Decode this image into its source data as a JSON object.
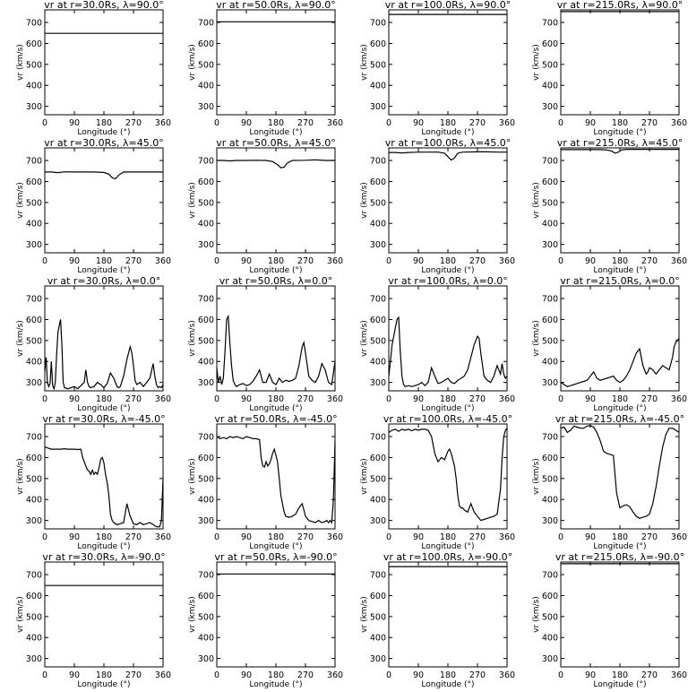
{
  "figure": {
    "xlabel": "Longitude (°)",
    "ylabel": "vr (km/s)",
    "xlim": [
      0,
      360
    ],
    "ylim": [
      260,
      760
    ],
    "xticks": [
      0,
      90,
      180,
      270,
      360
    ],
    "yticks": [
      300,
      400,
      500,
      600,
      700
    ],
    "line_color": "#000000"
  },
  "chart_data": [
    {
      "type": "line",
      "title": "vr at r=30.0Rs, λ=90.0°",
      "x": [
        0,
        360
      ],
      "y": [
        648,
        648
      ]
    },
    {
      "type": "line",
      "title": "vr at r=50.0Rs, λ=90.0°",
      "x": [
        0,
        360
      ],
      "y": [
        703,
        703
      ]
    },
    {
      "type": "line",
      "title": "vr at r=100.0Rs, λ=90.0°",
      "x": [
        0,
        360
      ],
      "y": [
        738,
        738
      ]
    },
    {
      "type": "line",
      "title": "vr at r=215.0Rs, λ=90.0°",
      "x": [
        0,
        360
      ],
      "y": [
        752,
        752
      ]
    },
    {
      "type": "line",
      "title": "vr at r=30.0Rs, λ=45.0°",
      "x": [
        0,
        20,
        40,
        60,
        90,
        120,
        150,
        180,
        195,
        205,
        215,
        225,
        240,
        270,
        300,
        330,
        360
      ],
      "y": [
        645,
        645,
        642,
        646,
        645,
        645,
        645,
        643,
        635,
        618,
        612,
        630,
        645,
        645,
        645,
        645,
        645
      ]
    },
    {
      "type": "line",
      "title": "vr at r=50.0Rs, λ=45.0°",
      "x": [
        0,
        20,
        40,
        60,
        90,
        120,
        150,
        170,
        185,
        195,
        205,
        215,
        230,
        270,
        300,
        330,
        360
      ],
      "y": [
        700,
        700,
        698,
        700,
        700,
        701,
        700,
        695,
        680,
        665,
        668,
        688,
        700,
        701,
        703,
        700,
        700
      ]
    },
    {
      "type": "line",
      "title": "vr at r=100.0Rs, λ=45.0°",
      "x": [
        0,
        20,
        40,
        60,
        90,
        120,
        150,
        170,
        180,
        190,
        200,
        210,
        225,
        270,
        300,
        330,
        360
      ],
      "y": [
        738,
        738,
        736,
        738,
        740,
        740,
        740,
        735,
        718,
        702,
        712,
        735,
        740,
        741,
        741,
        740,
        740
      ]
    },
    {
      "type": "line",
      "title": "vr at r=215.0Rs, λ=45.0°",
      "x": [
        0,
        30,
        60,
        90,
        120,
        140,
        155,
        165,
        175,
        185,
        200,
        240,
        270,
        300,
        330,
        360
      ],
      "y": [
        752,
        752,
        752,
        752,
        752,
        750,
        745,
        735,
        740,
        750,
        753,
        753,
        753,
        753,
        753,
        753
      ]
    },
    {
      "type": "line",
      "title": "vr at r=30.0Rs, λ=0.0°",
      "x": [
        0,
        4,
        8,
        12,
        16,
        20,
        24,
        28,
        32,
        36,
        40,
        44,
        48,
        52,
        56,
        60,
        70,
        80,
        90,
        100,
        110,
        120,
        125,
        130,
        135,
        140,
        150,
        160,
        170,
        180,
        190,
        200,
        210,
        215,
        220,
        225,
        230,
        240,
        250,
        260,
        265,
        270,
        275,
        280,
        290,
        300,
        310,
        320,
        330,
        335,
        340,
        345,
        350,
        355,
        360
      ],
      "y": [
        355,
        420,
        300,
        280,
        295,
        400,
        285,
        270,
        300,
        430,
        540,
        570,
        600,
        480,
        300,
        275,
        270,
        275,
        280,
        270,
        285,
        300,
        360,
        300,
        280,
        275,
        280,
        300,
        290,
        275,
        295,
        345,
        320,
        300,
        280,
        275,
        280,
        330,
        410,
        470,
        440,
        380,
        310,
        290,
        300,
        280,
        300,
        320,
        390,
        330,
        290,
        275,
        280,
        275,
        290
      ]
    },
    {
      "type": "line",
      "title": "vr at r=50.0Rs, λ=0.0°",
      "x": [
        0,
        5,
        10,
        15,
        20,
        25,
        30,
        35,
        40,
        45,
        50,
        55,
        60,
        70,
        80,
        90,
        100,
        110,
        120,
        130,
        140,
        150,
        160,
        170,
        180,
        190,
        200,
        210,
        220,
        230,
        240,
        250,
        260,
        265,
        270,
        280,
        290,
        300,
        310,
        320,
        330,
        340,
        350,
        360
      ],
      "y": [
        370,
        300,
        330,
        290,
        320,
        450,
        600,
        615,
        480,
        380,
        310,
        290,
        280,
        290,
        295,
        285,
        290,
        305,
        330,
        360,
        300,
        300,
        340,
        300,
        290,
        320,
        300,
        310,
        305,
        310,
        320,
        380,
        470,
        490,
        440,
        330,
        310,
        300,
        330,
        390,
        360,
        300,
        290,
        400
      ]
    },
    {
      "type": "line",
      "title": "vr at r=100.0Rs, λ=0.0°",
      "x": [
        0,
        5,
        10,
        15,
        20,
        25,
        30,
        35,
        40,
        45,
        50,
        60,
        70,
        80,
        90,
        100,
        110,
        120,
        130,
        140,
        150,
        160,
        170,
        180,
        190,
        200,
        210,
        220,
        230,
        240,
        250,
        260,
        270,
        275,
        280,
        290,
        300,
        310,
        320,
        330,
        340,
        345,
        350,
        355,
        360
      ],
      "y": [
        330,
        400,
        480,
        520,
        560,
        600,
        610,
        450,
        330,
        290,
        280,
        285,
        280,
        285,
        290,
        300,
        285,
        300,
        370,
        330,
        295,
        300,
        310,
        320,
        300,
        295,
        310,
        320,
        330,
        360,
        420,
        480,
        520,
        510,
        440,
        330,
        310,
        300,
        330,
        380,
        340,
        390,
        340,
        320,
        330
      ]
    },
    {
      "type": "line",
      "title": "vr at r=215.0Rs, λ=0.0°",
      "x": [
        0,
        10,
        20,
        30,
        40,
        50,
        60,
        70,
        80,
        90,
        100,
        110,
        120,
        130,
        140,
        150,
        160,
        170,
        180,
        190,
        200,
        210,
        220,
        230,
        240,
        250,
        260,
        265,
        270,
        280,
        290,
        300,
        310,
        320,
        330,
        340,
        345,
        350,
        355,
        360
      ],
      "y": [
        300,
        290,
        280,
        285,
        290,
        295,
        300,
        305,
        310,
        330,
        350,
        320,
        310,
        315,
        320,
        325,
        330,
        310,
        300,
        310,
        330,
        360,
        400,
        440,
        460,
        380,
        340,
        350,
        370,
        360,
        340,
        360,
        380,
        370,
        360,
        420,
        470,
        490,
        500,
        510
      ]
    },
    {
      "type": "line",
      "title": "vr at r=30.0Rs, λ=-45.0°",
      "x": [
        0,
        10,
        20,
        30,
        40,
        50,
        60,
        70,
        80,
        90,
        100,
        110,
        115,
        120,
        125,
        130,
        135,
        140,
        145,
        150,
        155,
        160,
        165,
        170,
        175,
        180,
        185,
        190,
        195,
        200,
        205,
        210,
        220,
        230,
        240,
        250,
        260,
        270,
        280,
        290,
        300,
        310,
        320,
        330,
        340,
        350,
        355,
        360
      ],
      "y": [
        650,
        645,
        640,
        640,
        640,
        640,
        642,
        640,
        640,
        640,
        638,
        640,
        600,
        580,
        560,
        540,
        535,
        520,
        540,
        520,
        530,
        520,
        550,
        590,
        600,
        575,
        520,
        480,
        420,
        330,
        300,
        290,
        280,
        285,
        290,
        380,
        320,
        285,
        280,
        290,
        280,
        285,
        290,
        280,
        270,
        270,
        300,
        500
      ]
    },
    {
      "type": "line",
      "title": "vr at r=50.0Rs, λ=-45.0°",
      "x": [
        0,
        10,
        20,
        30,
        40,
        50,
        60,
        70,
        80,
        90,
        100,
        110,
        120,
        130,
        135,
        140,
        145,
        150,
        155,
        160,
        165,
        170,
        175,
        180,
        185,
        190,
        195,
        200,
        205,
        210,
        220,
        230,
        240,
        250,
        260,
        265,
        270,
        280,
        290,
        300,
        310,
        320,
        330,
        335,
        340,
        345,
        350,
        355,
        360
      ],
      "y": [
        700,
        690,
        695,
        690,
        700,
        695,
        700,
        695,
        690,
        700,
        695,
        690,
        690,
        685,
        600,
        560,
        555,
        580,
        560,
        570,
        590,
        620,
        640,
        610,
        580,
        500,
        420,
        380,
        340,
        320,
        315,
        320,
        330,
        360,
        380,
        350,
        320,
        300,
        295,
        290,
        300,
        290,
        295,
        300,
        290,
        300,
        290,
        400,
        680
      ]
    },
    {
      "type": "line",
      "title": "vr at r=100.0Rs, λ=-45.0°",
      "x": [
        0,
        10,
        20,
        30,
        40,
        50,
        60,
        70,
        80,
        90,
        100,
        110,
        120,
        130,
        140,
        150,
        160,
        170,
        180,
        185,
        190,
        200,
        205,
        210,
        215,
        220,
        225,
        230,
        240,
        250,
        260,
        270,
        280,
        290,
        300,
        310,
        320,
        330,
        340,
        345,
        350,
        355,
        360
      ],
      "y": [
        720,
        730,
        735,
        725,
        735,
        730,
        735,
        728,
        735,
        730,
        735,
        735,
        730,
        700,
        620,
        580,
        600,
        590,
        630,
        640,
        620,
        560,
        500,
        420,
        370,
        360,
        360,
        350,
        340,
        380,
        340,
        320,
        300,
        305,
        310,
        315,
        320,
        330,
        450,
        600,
        700,
        730,
        740
      ]
    },
    {
      "type": "line",
      "title": "vr at r=215.0Rs, λ=-45.0°",
      "x": [
        0,
        10,
        20,
        30,
        40,
        50,
        60,
        70,
        80,
        90,
        100,
        110,
        120,
        130,
        140,
        150,
        160,
        165,
        170,
        180,
        190,
        200,
        210,
        220,
        230,
        240,
        250,
        260,
        270,
        280,
        290,
        300,
        310,
        320,
        330,
        340,
        350,
        360
      ],
      "y": [
        740,
        745,
        720,
        730,
        750,
        745,
        740,
        740,
        750,
        752,
        745,
        720,
        680,
        630,
        620,
        615,
        610,
        520,
        430,
        360,
        370,
        375,
        365,
        340,
        320,
        310,
        315,
        320,
        330,
        380,
        460,
        560,
        650,
        710,
        740,
        740,
        730,
        720
      ]
    },
    {
      "type": "line",
      "title": "vr at r=30.0Rs, λ=-90.0°",
      "x": [
        0,
        360
      ],
      "y": [
        648,
        648
      ]
    },
    {
      "type": "line",
      "title": "vr at r=50.0Rs, λ=-90.0°",
      "x": [
        0,
        360
      ],
      "y": [
        703,
        703
      ]
    },
    {
      "type": "line",
      "title": "vr at r=100.0Rs, λ=-90.0°",
      "x": [
        0,
        360
      ],
      "y": [
        738,
        738
      ]
    },
    {
      "type": "line",
      "title": "vr at r=215.0Rs, λ=-90.0°",
      "x": [
        0,
        360
      ],
      "y": [
        752,
        752
      ]
    }
  ]
}
